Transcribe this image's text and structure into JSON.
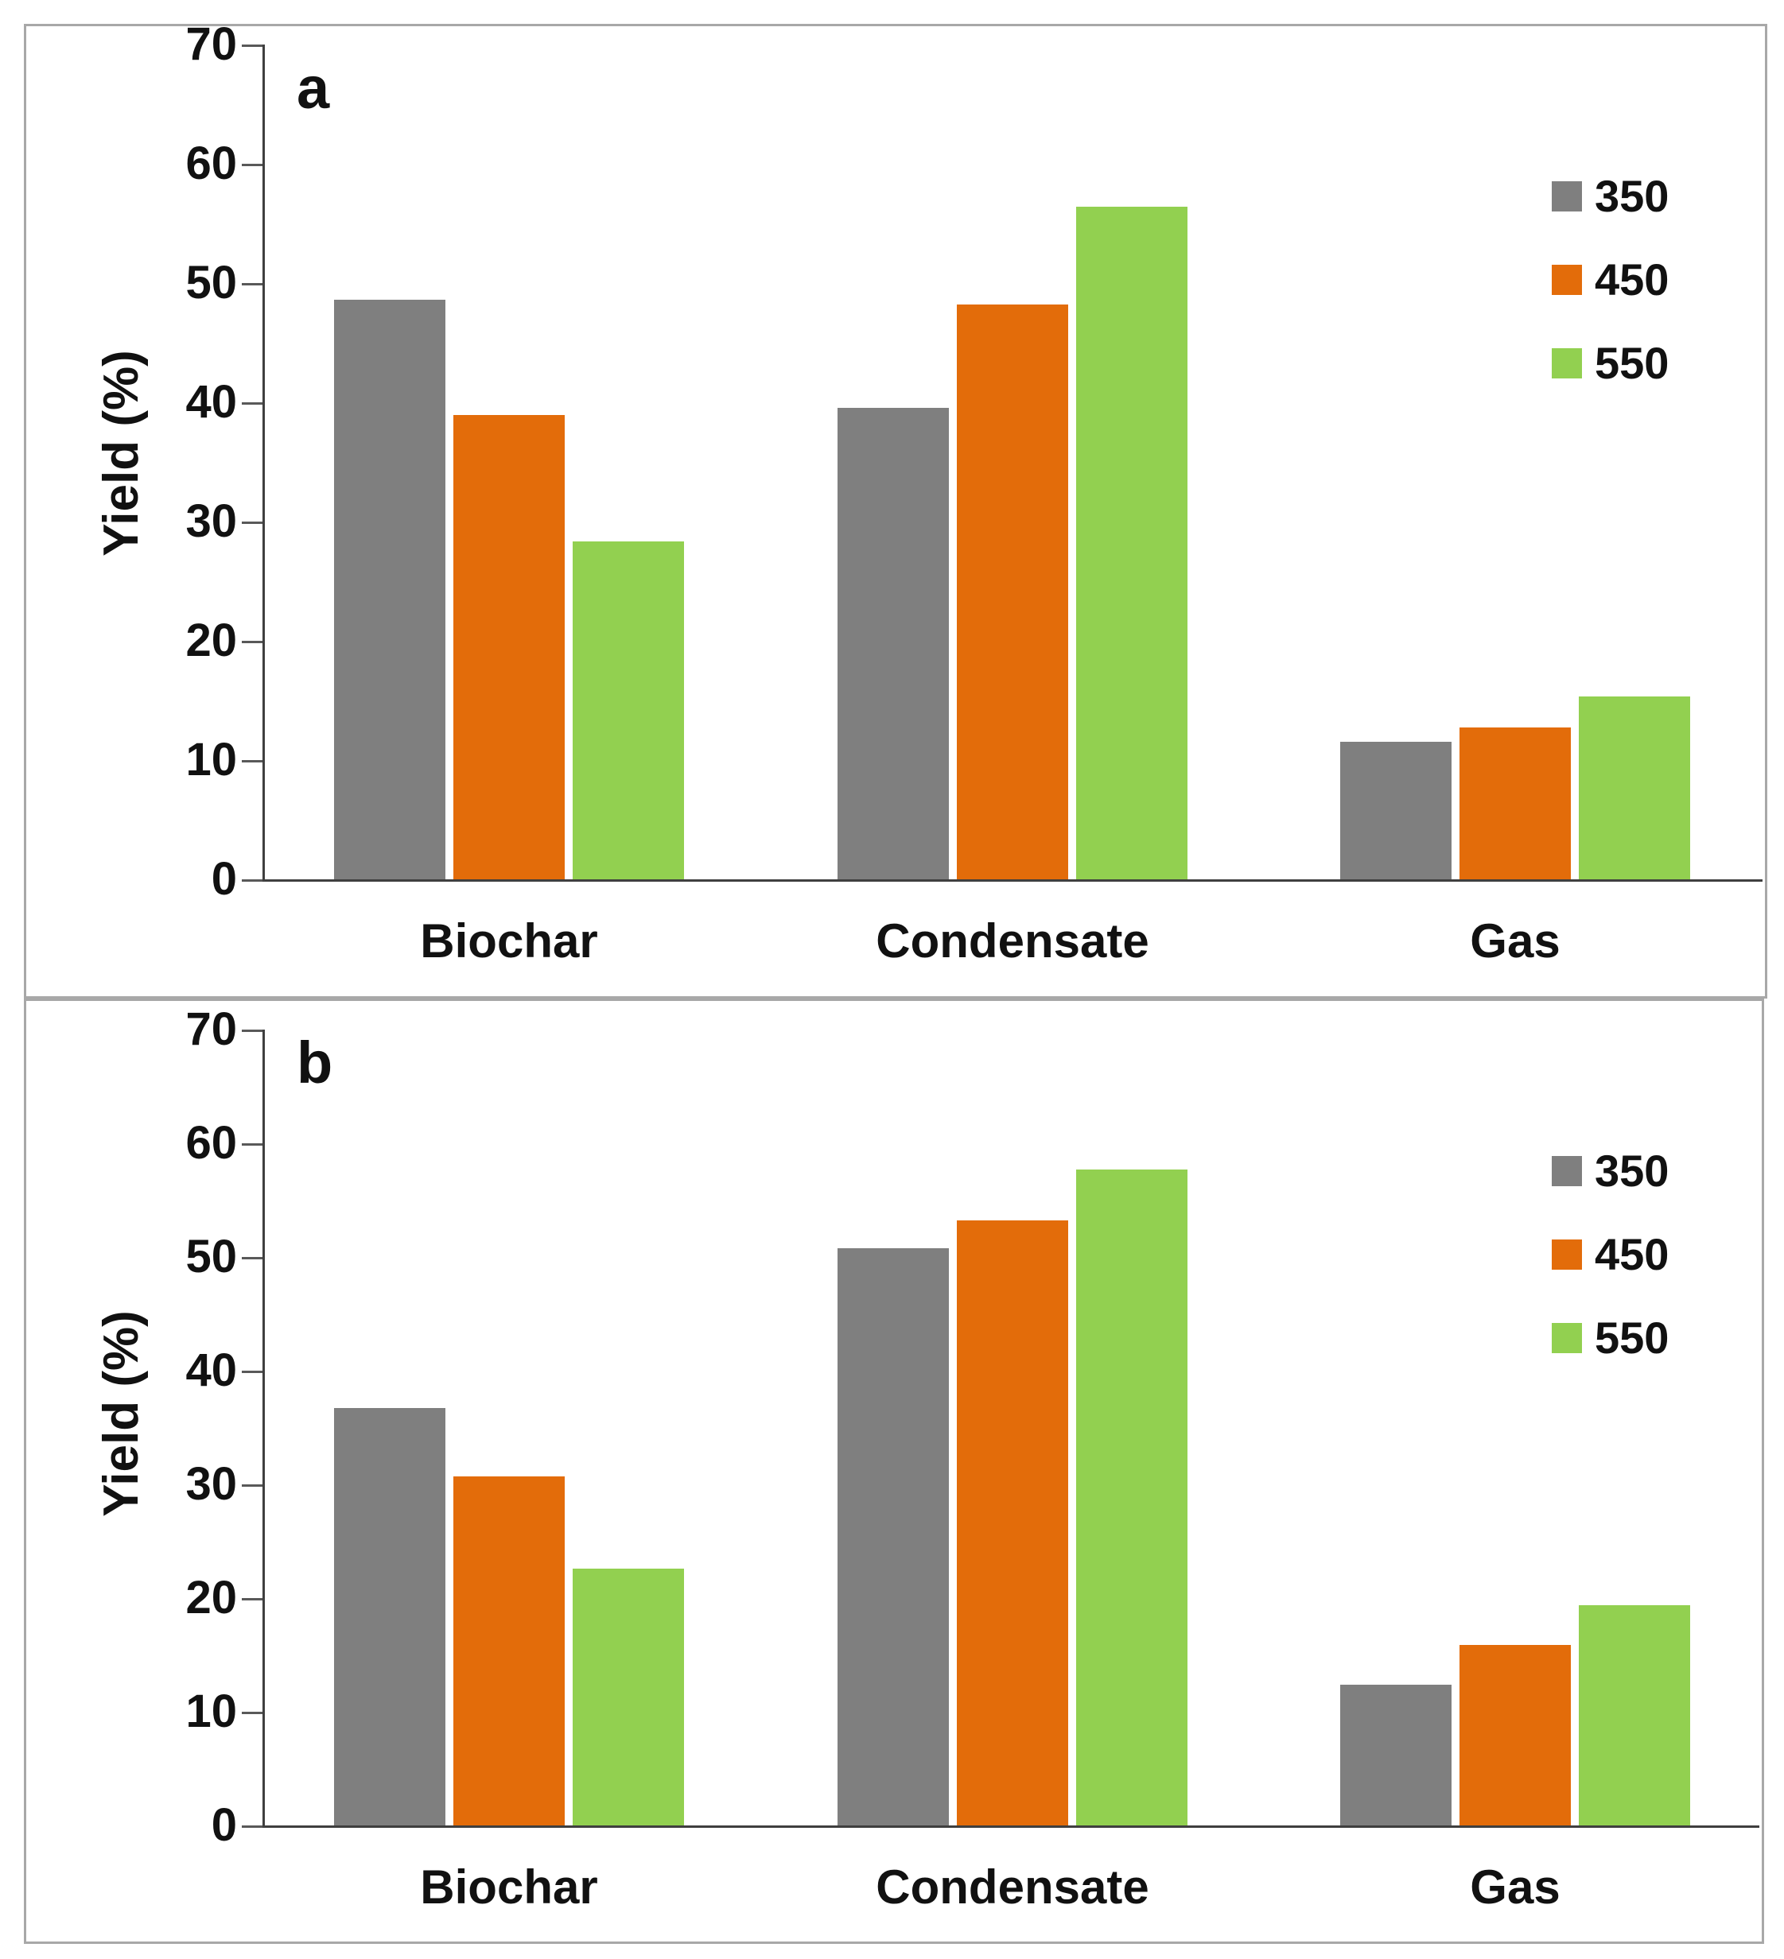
{
  "chart_data": [
    {
      "type": "bar",
      "panel_label": "a",
      "ylabel": "Yield (%)",
      "ylim": [
        0,
        70
      ],
      "yticks": [
        0,
        10,
        20,
        30,
        40,
        50,
        60,
        70
      ],
      "categories": [
        "Biochar",
        "Condensate",
        "Gas"
      ],
      "series": [
        {
          "name": "350",
          "color": "#7f7f7f",
          "values": [
            48.6,
            39.5,
            11.5
          ]
        },
        {
          "name": "450",
          "color": "#e36c0a",
          "values": [
            38.9,
            48.2,
            12.7
          ]
        },
        {
          "name": "550",
          "color": "#92d050",
          "values": [
            28.3,
            56.4,
            15.3
          ]
        }
      ],
      "legend_position": "upper right",
      "grid": false
    },
    {
      "type": "bar",
      "panel_label": "b",
      "ylabel": "Yield (%)",
      "ylim": [
        0,
        70
      ],
      "yticks": [
        0,
        10,
        20,
        30,
        40,
        50,
        60,
        70
      ],
      "categories": [
        "Biochar",
        "Condensate",
        "Gas"
      ],
      "series": [
        {
          "name": "350",
          "color": "#7f7f7f",
          "values": [
            36.7,
            50.8,
            12.4
          ]
        },
        {
          "name": "450",
          "color": "#e36c0a",
          "values": [
            30.7,
            53.2,
            15.9
          ]
        },
        {
          "name": "550",
          "color": "#92d050",
          "values": [
            22.6,
            57.7,
            19.4
          ]
        }
      ],
      "legend_position": "upper right",
      "grid": false
    }
  ]
}
